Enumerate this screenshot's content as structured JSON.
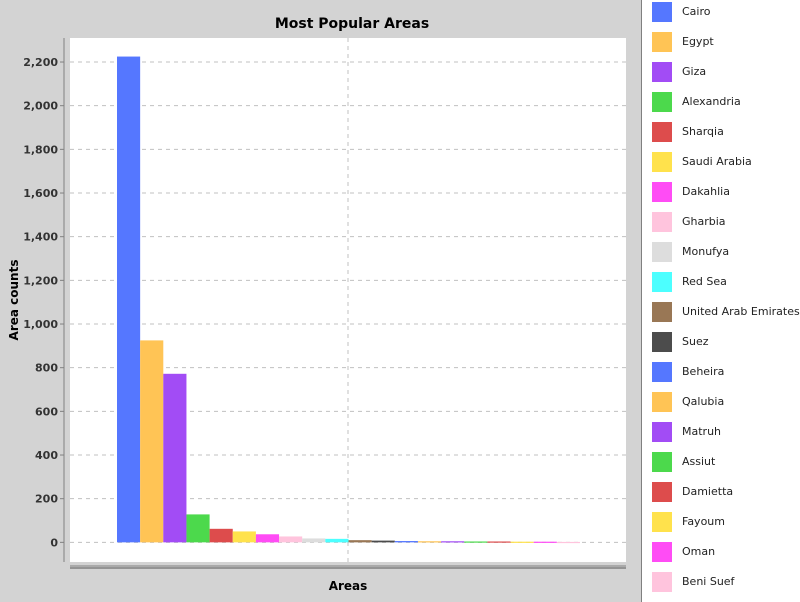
{
  "chart_data": {
    "type": "bar",
    "title": "Most Popular Areas",
    "xlabel": "Areas",
    "ylabel": "Area counts",
    "ylim": [
      -90,
      2310
    ],
    "yticks": [
      0,
      200,
      400,
      600,
      800,
      1000,
      1200,
      1400,
      1600,
      1800,
      2000,
      2200
    ],
    "ytick_labels": [
      "0",
      "200",
      "400",
      "600",
      "800",
      "1,000",
      "1,200",
      "1,400",
      "1,600",
      "1,800",
      "2,000",
      "2,200"
    ],
    "grid": true,
    "legend_position": "right",
    "series": [
      {
        "name": "Cairo",
        "value": 2225,
        "color": "#5577ff"
      },
      {
        "name": "Egypt",
        "value": 925,
        "color": "#ffc455"
      },
      {
        "name": "Giza",
        "value": 772,
        "color": "#a24cf5"
      },
      {
        "name": "Alexandria",
        "value": 128,
        "color": "#4cd94c"
      },
      {
        "name": "Sharqia",
        "value": 62,
        "color": "#dd4c4c"
      },
      {
        "name": "Saudi Arabia",
        "value": 50,
        "color": "#ffe24c"
      },
      {
        "name": "Dakahlia",
        "value": 37,
        "color": "#ff4cf5"
      },
      {
        "name": "Gharbia",
        "value": 27,
        "color": "#ffc4dd"
      },
      {
        "name": "Monufya",
        "value": 18,
        "color": "#dddddd"
      },
      {
        "name": "Red Sea",
        "value": 16,
        "color": "#4cffff"
      },
      {
        "name": "United Arab Emirates",
        "value": 10,
        "color": "#997755"
      },
      {
        "name": "Suez",
        "value": 8,
        "color": "#4c4c4c"
      },
      {
        "name": "Beheira",
        "value": 6,
        "color": "#5577ff"
      },
      {
        "name": "Qalubia",
        "value": 5,
        "color": "#ffc455"
      },
      {
        "name": "Matruh",
        "value": 5,
        "color": "#a24cf5"
      },
      {
        "name": "Assiut",
        "value": 4,
        "color": "#4cd94c"
      },
      {
        "name": "Damietta",
        "value": 4,
        "color": "#dd4c4c"
      },
      {
        "name": "Fayoum",
        "value": 3,
        "color": "#ffe24c"
      },
      {
        "name": "Oman",
        "value": 3,
        "color": "#ff4cf5"
      },
      {
        "name": "Beni Suef",
        "value": 2,
        "color": "#ffc4dd"
      }
    ]
  }
}
